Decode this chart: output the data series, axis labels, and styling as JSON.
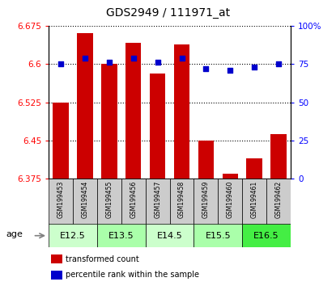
{
  "title": "GDS2949 / 111971_at",
  "samples": [
    "GSM199453",
    "GSM199454",
    "GSM199455",
    "GSM199456",
    "GSM199457",
    "GSM199458",
    "GSM199459",
    "GSM199460",
    "GSM199461",
    "GSM199462"
  ],
  "transformed_count": [
    6.525,
    6.66,
    6.6,
    6.641,
    6.582,
    6.638,
    6.45,
    6.385,
    6.415,
    6.462
  ],
  "percentile_rank": [
    75,
    79,
    76,
    79,
    76,
    79,
    72,
    71,
    73,
    75
  ],
  "ylim_left": [
    6.375,
    6.675
  ],
  "ylim_right": [
    0,
    100
  ],
  "yticks_left": [
    6.375,
    6.45,
    6.525,
    6.6,
    6.675
  ],
  "ytick_labels_left": [
    "6.375",
    "6.45",
    "6.525",
    "6.6",
    "6.675"
  ],
  "yticks_right": [
    0,
    25,
    50,
    75,
    100
  ],
  "ytick_labels_right": [
    "0",
    "25",
    "50",
    "75",
    "100%"
  ],
  "bar_color": "#cc0000",
  "dot_color": "#0000cc",
  "age_groups": [
    {
      "label": "E12.5",
      "span": [
        0,
        2
      ],
      "color": "#ccffcc"
    },
    {
      "label": "E13.5",
      "span": [
        2,
        4
      ],
      "color": "#aaffaa"
    },
    {
      "label": "E14.5",
      "span": [
        4,
        6
      ],
      "color": "#ccffcc"
    },
    {
      "label": "E15.5",
      "span": [
        6,
        8
      ],
      "color": "#aaffaa"
    },
    {
      "label": "E16.5",
      "span": [
        8,
        10
      ],
      "color": "#44ee44"
    }
  ],
  "sample_label_color": "#cccccc",
  "legend_items": [
    {
      "label": "transformed count",
      "color": "#cc0000"
    },
    {
      "label": "percentile rank within the sample",
      "color": "#0000cc"
    }
  ]
}
